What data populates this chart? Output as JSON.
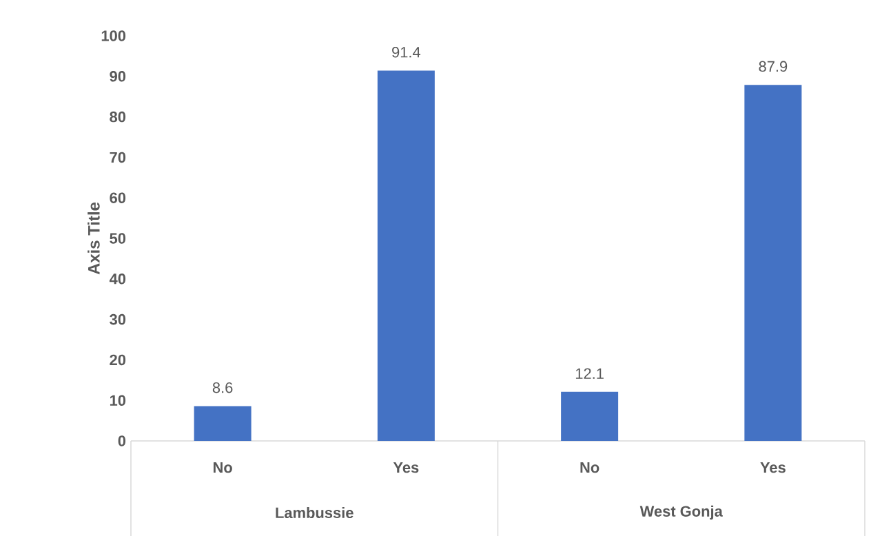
{
  "chart_data": {
    "type": "bar",
    "ylabel": "Axis Title",
    "categories": [
      "No",
      "Yes",
      "No",
      "Yes"
    ],
    "values": [
      8.6,
      91.4,
      12.1,
      87.9
    ],
    "color": "#4472c4",
    "ylim": [
      0,
      100
    ],
    "yticks": [
      0,
      10,
      20,
      30,
      40,
      50,
      60,
      70,
      80,
      90,
      100
    ],
    "data_labels": true,
    "annotations": [
      "Lambussie",
      "West Gonja"
    ]
  }
}
